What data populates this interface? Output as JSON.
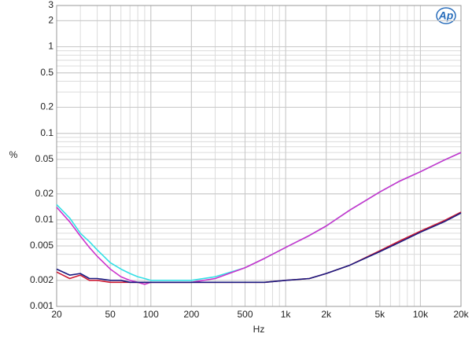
{
  "chart_data": {
    "type": "line",
    "logo": "Ap",
    "ylabel": "%",
    "xlabel": "Hz",
    "xscale": "log",
    "yscale": "log",
    "grid": true,
    "minor_grid": true,
    "xlim": [
      20,
      20000
    ],
    "xticks": [
      20,
      50,
      100,
      200,
      500,
      {
        "value": 1000,
        "label": "1k"
      },
      {
        "value": 2000,
        "label": "2k"
      },
      {
        "value": 5000,
        "label": "5k"
      },
      {
        "value": 10000,
        "label": "10k"
      },
      {
        "value": 20000,
        "label": "20k"
      }
    ],
    "ylim": [
      0.001,
      3
    ],
    "yticks": [
      0.001,
      0.002,
      0.005,
      0.01,
      0.02,
      0.05,
      0.1,
      0.2,
      0.5,
      1,
      2,
      3
    ],
    "x": [
      20,
      25,
      30,
      35,
      40,
      50,
      60,
      70,
      80,
      90,
      100,
      150,
      200,
      300,
      500,
      700,
      1000,
      1500,
      2000,
      3000,
      5000,
      7000,
      10000,
      15000,
      20000
    ],
    "series": [
      {
        "color": "#33e0e6",
        "values": [
          0.015,
          0.0105,
          0.007,
          0.0056,
          0.0045,
          0.0032,
          0.0027,
          0.0024,
          0.0022,
          0.0021,
          0.002,
          0.002,
          0.002,
          0.0022,
          0.0028,
          0.0036,
          0.0048,
          0.0066,
          0.0085,
          0.013,
          0.021,
          0.028,
          0.036,
          0.049,
          0.06
        ]
      },
      {
        "color": "#cc33cc",
        "values": [
          0.014,
          0.0095,
          0.0065,
          0.0048,
          0.0038,
          0.0027,
          0.0022,
          0.002,
          0.0019,
          0.0018,
          0.0019,
          0.0019,
          0.0019,
          0.0021,
          0.0028,
          0.0036,
          0.0048,
          0.0066,
          0.0085,
          0.013,
          0.021,
          0.028,
          0.036,
          0.049,
          0.06
        ]
      },
      {
        "color": "#cc1a33",
        "values": [
          0.0025,
          0.0021,
          0.0023,
          0.002,
          0.002,
          0.0019,
          0.0019,
          0.0019,
          0.0019,
          0.0019,
          0.0019,
          0.0019,
          0.0019,
          0.0019,
          0.0019,
          0.0019,
          0.002,
          0.0021,
          0.0024,
          0.003,
          0.0044,
          0.0057,
          0.0074,
          0.0098,
          0.0123
        ]
      },
      {
        "color": "#1a1a80",
        "values": [
          0.0027,
          0.0023,
          0.0024,
          0.0021,
          0.0021,
          0.002,
          0.002,
          0.0019,
          0.0019,
          0.0019,
          0.0019,
          0.0019,
          0.0019,
          0.0019,
          0.0019,
          0.0019,
          0.002,
          0.0021,
          0.0024,
          0.003,
          0.0043,
          0.0055,
          0.0072,
          0.0095,
          0.012
        ]
      }
    ]
  }
}
